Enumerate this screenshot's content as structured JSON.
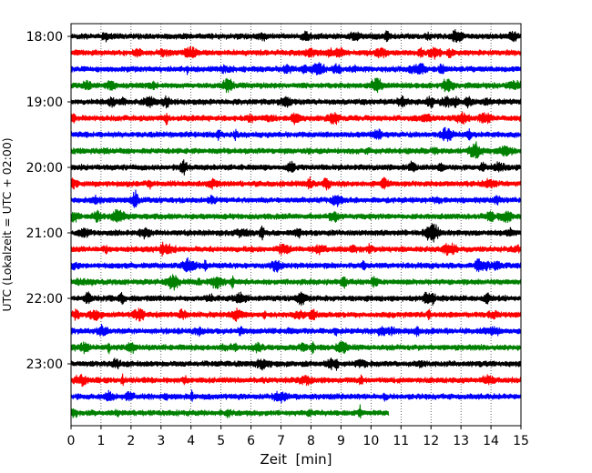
{
  "chart_data": {
    "type": "line",
    "chart_kind": "helicorder seismogram",
    "xlabel": "Zeit  [min]",
    "ylabel": "UTC (Lokalzeit = UTC + 02:00)",
    "xlim": [
      0,
      15
    ],
    "x_ticks": [
      "0",
      "1",
      "2",
      "3",
      "4",
      "5",
      "6",
      "7",
      "8",
      "9",
      "10",
      "11",
      "12",
      "13",
      "14",
      "15"
    ],
    "y_tick_labels": [
      "18:00",
      "19:00",
      "20:00",
      "21:00",
      "22:00",
      "23:00"
    ],
    "vertical_grid": "dotted, at every minute",
    "trace_interval_min": 15,
    "colors": [
      "#000000",
      "#ff0000",
      "#0000ff",
      "#008000"
    ],
    "traces": [
      {
        "start": "18:00",
        "end_min": 15
      },
      {
        "start": "18:15",
        "end_min": 15
      },
      {
        "start": "18:30",
        "end_min": 15
      },
      {
        "start": "18:45",
        "end_min": 15
      },
      {
        "start": "19:00",
        "end_min": 15
      },
      {
        "start": "19:15",
        "end_min": 15
      },
      {
        "start": "19:30",
        "end_min": 15
      },
      {
        "start": "19:45",
        "end_min": 15
      },
      {
        "start": "20:00",
        "end_min": 15
      },
      {
        "start": "20:15",
        "end_min": 15
      },
      {
        "start": "20:30",
        "end_min": 15
      },
      {
        "start": "20:45",
        "end_min": 15
      },
      {
        "start": "21:00",
        "end_min": 15
      },
      {
        "start": "21:15",
        "end_min": 15
      },
      {
        "start": "21:30",
        "end_min": 15
      },
      {
        "start": "21:45",
        "end_min": 15
      },
      {
        "start": "22:00",
        "end_min": 15
      },
      {
        "start": "22:15",
        "end_min": 15
      },
      {
        "start": "22:30",
        "end_min": 15
      },
      {
        "start": "22:45",
        "end_min": 15
      },
      {
        "start": "23:00",
        "end_min": 15
      },
      {
        "start": "23:15",
        "end_min": 15
      },
      {
        "start": "23:30",
        "end_min": 15
      },
      {
        "start": "23:45",
        "end_min": 10.6
      }
    ]
  }
}
